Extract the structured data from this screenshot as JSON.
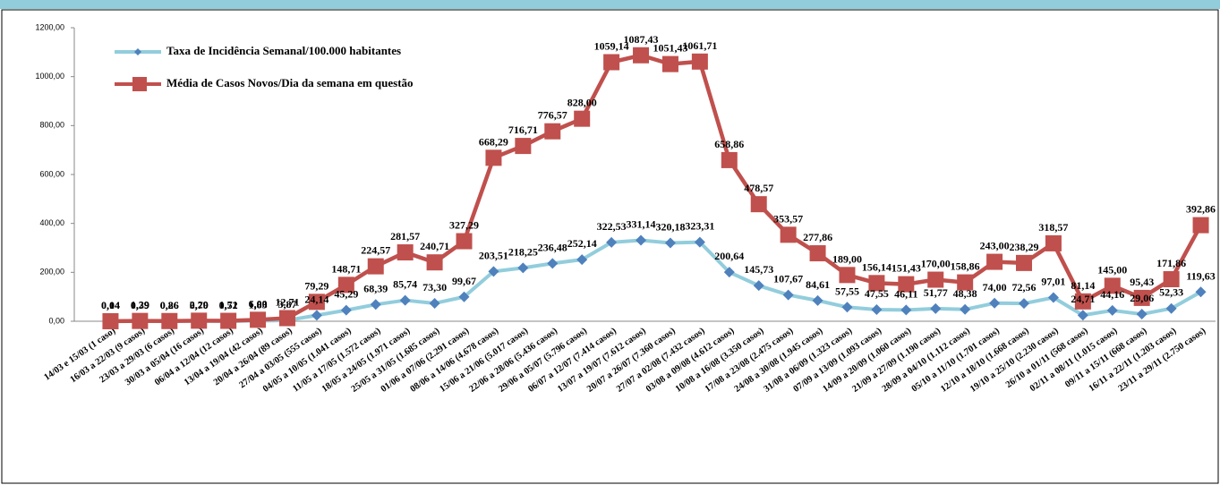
{
  "chart_data": {
    "type": "line",
    "categories": [
      "14/03 e 15/03 (1 caso)",
      "16/03 a 22/03 (9 casos)",
      "23/03 a 29/03 (6 casos)",
      "30/03 a 05/04 (16 casos)",
      "06/04 a 12/04 (12 casos)",
      "13/04 a 19/04 (42 casos)",
      "20/04 a 26/04 (89 casos)",
      "27/04 a 03/05 (555 casos)",
      "04/05 a 10/05 (1.041 casos)",
      "11/05 a 17/05 (1.572 casos)",
      "18/05 a 24/05 (1.971 casos)",
      "25/05 a 31/05 (1.685 casos)",
      "01/06 a 07/06 (2.291 casos)",
      "08/06 a 14/06 (4.678 casos)",
      "15/06 a 21/06 (5.017 casos)",
      "22/06 a 28/06 (5.436 casos)",
      "29/06 a 05/07 (5.796 casos)",
      "06/07 a 12/07 (7.414 casos)",
      "13/07 a 19/07 (7.612 casos)",
      "20/07 a 26/07 (7.360 casos)",
      "27/07 a 02/08 (7.432 casos)",
      "03/08 a 09/08 (4.612 casos)",
      "10/08 a 16/08 (3.350 casos)",
      "17/08 a 23/08 (2.475 casos)",
      "24/08 a 30/08 (1.945 casos)",
      "31/08 a 06/09 (1.323 casos)",
      "07/09 a 13/09 (1.093 casos)",
      "14/09 a 20/09 (1.060 casos)",
      "21/09 a 27/09 (1.190 casos)",
      "28/09 a 04/10 (1.112 casos)",
      "05/10 a 11/10 (1.701 casos)",
      "12/10 a 18/10 (1.668 casos)",
      "19/10 a 25/10 (2.230 casos)",
      "26/10 a 01/11 (568 casos)",
      "02/11 a 08/11 (1.015 casos)",
      "09/11 a 15/11 (668 casos)",
      "16/11 a 22/11 (1.203 casos)",
      "23/11 a 29/11 (2.750 casos)"
    ],
    "series": [
      {
        "name": "Taxa de Incidência Semanal/100.000 habitantes",
        "color": "#92cddc",
        "marker_color": "#4f81bd",
        "marker": "diamond",
        "values": [
          0.04,
          0.39,
          0.26,
          0.7,
          0.52,
          1.83,
          3.87,
          24.14,
          45.29,
          68.39,
          85.74,
          73.3,
          99.67,
          203.51,
          218.25,
          236.48,
          252.14,
          322.53,
          331.14,
          320.18,
          323.31,
          200.64,
          145.73,
          107.67,
          84.61,
          57.55,
          47.55,
          46.11,
          51.77,
          48.38,
          74.0,
          72.56,
          97.01,
          24.71,
          44.16,
          29.06,
          52.33,
          119.63
        ],
        "value_labels": [
          "0,04",
          "0,39",
          "0,26",
          "0,70",
          "0,52",
          "1,83",
          "3,87",
          "24,14",
          "45,29",
          "68,39",
          "85,74",
          "73,30",
          "99,67",
          "203,51",
          "218,25",
          "236,48",
          "252,14",
          "322,53",
          "331,14",
          "320,18",
          "323,31",
          "200,64",
          "145,73",
          "107,67",
          "84,61",
          "57,55",
          "47,55",
          "46,11",
          "51,77",
          "48,38",
          "74,00",
          "72,56",
          "97,01",
          "24,71",
          "44,16",
          "29,06",
          "52,33",
          "119,63"
        ]
      },
      {
        "name": "Média de Casos Novos/Dia da semana em questão",
        "color": "#c0504d",
        "marker_color": "#c0504d",
        "marker": "square",
        "values": [
          0.14,
          1.29,
          0.86,
          2.29,
          1.71,
          6.0,
          12.71,
          79.29,
          148.71,
          224.57,
          281.57,
          240.71,
          327.29,
          668.29,
          716.71,
          776.57,
          828.0,
          1059.14,
          1087.43,
          1051.43,
          1061.71,
          658.86,
          478.57,
          353.57,
          277.86,
          189.0,
          156.14,
          151.43,
          170.0,
          158.86,
          243.0,
          238.29,
          318.57,
          81.14,
          145.0,
          95.43,
          171.86,
          392.86
        ],
        "value_labels": [
          "0,14",
          "1,29",
          "0,86",
          "2,29",
          "1,71",
          "6,00",
          "12,71",
          "79,29",
          "148,71",
          "224,57",
          "281,57",
          "240,71",
          "327,29",
          "668,29",
          "716,71",
          "776,57",
          "828,00",
          "1059,14",
          "1087,43",
          "1051,43",
          "1061,71",
          "658,86",
          "478,57",
          "353,57",
          "277,86",
          "189,00",
          "156,14",
          "151,43",
          "170,00",
          "158,86",
          "243,00",
          "238,29",
          "318,57",
          "81,14",
          "145,00",
          "95,43",
          "171,86",
          "392,86"
        ]
      }
    ],
    "ylim": [
      0,
      1200
    ],
    "yticks": [
      {
        "value": 0,
        "label": "0,00"
      },
      {
        "value": 200,
        "label": "200,00"
      },
      {
        "value": 400,
        "label": "400,00"
      },
      {
        "value": 600,
        "label": "600,00"
      },
      {
        "value": 800,
        "label": "800,00"
      },
      {
        "value": 1000,
        "label": "1000,00"
      },
      {
        "value": 1200,
        "label": "1200,00"
      }
    ],
    "grid": false,
    "legend": "upper left"
  }
}
